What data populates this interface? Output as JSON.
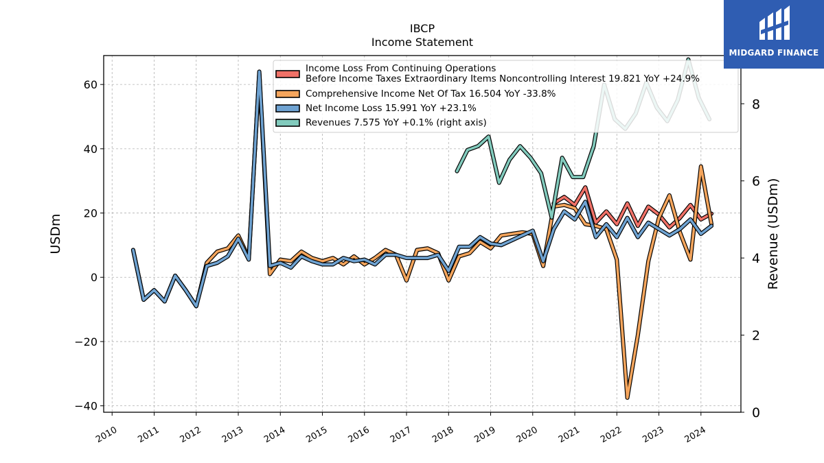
{
  "header": {
    "ticker": "IBCP",
    "subtitle": "Income Statement"
  },
  "logo": {
    "text": "MIDGARD FINANCE",
    "background": "#2f5db2"
  },
  "chart_data": {
    "type": "line",
    "title": "IBCP",
    "subtitle": "Income Statement",
    "ylabel": "USDm",
    "ylabel_right": "Revenue (USDm)",
    "ylim": [
      -42,
      69
    ],
    "ylim_right": [
      0,
      9.25
    ],
    "yticks": [
      -40,
      -20,
      0,
      20,
      40,
      60
    ],
    "yticks_right": [
      0,
      2,
      4,
      6,
      8
    ],
    "xlim": [
      2009.8,
      2024.95
    ],
    "xticks": [
      2010,
      2011,
      2012,
      2013,
      2014,
      2015,
      2016,
      2017,
      2018,
      2019,
      2020,
      2021,
      2022,
      2023,
      2024
    ],
    "grid": true,
    "legend_position": "top-right",
    "series": [
      {
        "name": "Income Loss From Continuing Operations Before Income Taxes Extraordinary Items Noncontrolling Interest  19.821 YoY +24.9%",
        "legend_lines": [
          "Income Loss From Continuing Operations",
          "Before Income Taxes Extraordinary Items Noncontrolling Interest  19.821 YoY +24.9%"
        ],
        "color": "#f07167",
        "axis": "left",
        "points": [
          [
            2020.5,
            23.0
          ],
          [
            2020.75,
            25.0
          ],
          [
            2021.0,
            22.5
          ],
          [
            2021.25,
            28.0
          ],
          [
            2021.5,
            17.0
          ],
          [
            2021.75,
            20.5
          ],
          [
            2022.0,
            16.5
          ],
          [
            2022.25,
            23.0
          ],
          [
            2022.5,
            16.0
          ],
          [
            2022.75,
            22.0
          ],
          [
            2023.0,
            19.5
          ],
          [
            2023.25,
            15.5
          ],
          [
            2023.5,
            18.5
          ],
          [
            2023.75,
            22.5
          ],
          [
            2024.0,
            18.0
          ],
          [
            2024.25,
            19.8
          ]
        ]
      },
      {
        "name": "Comprehensive Income Net Of Tax  16.504 YoY -33.8%",
        "color": "#f5a55c",
        "axis": "left",
        "points": [
          [
            2010.5,
            8.5
          ],
          [
            2010.75,
            -7.0
          ],
          [
            2011.0,
            -4.0
          ],
          [
            2011.25,
            -7.5
          ],
          [
            2011.5,
            0.5
          ],
          [
            2011.75,
            -4.0
          ],
          [
            2012.0,
            -9.0
          ],
          [
            2012.25,
            4.5
          ],
          [
            2012.5,
            8.0
          ],
          [
            2012.75,
            9.0
          ],
          [
            2013.0,
            13.0
          ],
          [
            2013.25,
            6.0
          ],
          [
            2013.5,
            63.5
          ],
          [
            2013.75,
            1.0
          ],
          [
            2014.0,
            5.5
          ],
          [
            2014.25,
            5.0
          ],
          [
            2014.5,
            8.0
          ],
          [
            2014.75,
            6.0
          ],
          [
            2015.0,
            5.0
          ],
          [
            2015.25,
            6.0
          ],
          [
            2015.5,
            4.0
          ],
          [
            2015.75,
            6.5
          ],
          [
            2016.0,
            4.0
          ],
          [
            2016.25,
            6.0
          ],
          [
            2016.5,
            8.5
          ],
          [
            2016.75,
            7.0
          ],
          [
            2017.0,
            -1.0
          ],
          [
            2017.25,
            8.5
          ],
          [
            2017.5,
            9.0
          ],
          [
            2017.75,
            7.5
          ],
          [
            2018.0,
            -1.0
          ],
          [
            2018.25,
            6.5
          ],
          [
            2018.5,
            7.5
          ],
          [
            2018.75,
            11.0
          ],
          [
            2019.0,
            9.0
          ],
          [
            2019.25,
            13.0
          ],
          [
            2019.5,
            13.5
          ],
          [
            2019.75,
            14.0
          ],
          [
            2020.0,
            13.5
          ],
          [
            2020.25,
            3.5
          ],
          [
            2020.5,
            22.0
          ],
          [
            2020.75,
            22.5
          ],
          [
            2021.0,
            21.5
          ],
          [
            2021.25,
            16.5
          ],
          [
            2021.5,
            16.0
          ],
          [
            2021.75,
            15.0
          ],
          [
            2022.0,
            5.5
          ],
          [
            2022.25,
            -37.5
          ],
          [
            2022.5,
            -18.0
          ],
          [
            2022.75,
            5.0
          ],
          [
            2023.0,
            18.5
          ],
          [
            2023.25,
            25.5
          ],
          [
            2023.5,
            14.0
          ],
          [
            2023.75,
            5.5
          ],
          [
            2024.0,
            34.5
          ],
          [
            2024.25,
            16.5
          ]
        ]
      },
      {
        "name": "Net Income Loss  15.991 YoY +23.1%",
        "color": "#6fa3d2",
        "axis": "left",
        "points": [
          [
            2010.5,
            8.5
          ],
          [
            2010.75,
            -7.0
          ],
          [
            2011.0,
            -4.0
          ],
          [
            2011.25,
            -7.5
          ],
          [
            2011.5,
            0.5
          ],
          [
            2011.75,
            -4.0
          ],
          [
            2012.0,
            -9.0
          ],
          [
            2012.25,
            3.5
          ],
          [
            2012.5,
            4.5
          ],
          [
            2012.75,
            6.5
          ],
          [
            2013.0,
            12.0
          ],
          [
            2013.25,
            5.5
          ],
          [
            2013.5,
            64.0
          ],
          [
            2013.75,
            3.5
          ],
          [
            2014.0,
            4.5
          ],
          [
            2014.25,
            3.0
          ],
          [
            2014.5,
            6.5
          ],
          [
            2014.75,
            5.0
          ],
          [
            2015.0,
            4.0
          ],
          [
            2015.25,
            4.0
          ],
          [
            2015.5,
            6.0
          ],
          [
            2015.75,
            5.0
          ],
          [
            2016.0,
            5.5
          ],
          [
            2016.25,
            4.0
          ],
          [
            2016.5,
            7.0
          ],
          [
            2016.75,
            7.0
          ],
          [
            2017.0,
            6.0
          ],
          [
            2017.25,
            6.0
          ],
          [
            2017.5,
            6.0
          ],
          [
            2017.75,
            7.0
          ],
          [
            2018.0,
            2.0
          ],
          [
            2018.25,
            9.5
          ],
          [
            2018.5,
            9.5
          ],
          [
            2018.75,
            12.5
          ],
          [
            2019.0,
            10.5
          ],
          [
            2019.25,
            10.0
          ],
          [
            2019.5,
            11.5
          ],
          [
            2019.75,
            13.0
          ],
          [
            2020.0,
            14.5
          ],
          [
            2020.25,
            5.0
          ],
          [
            2020.5,
            15.0
          ],
          [
            2020.75,
            20.5
          ],
          [
            2021.0,
            18.0
          ],
          [
            2021.25,
            23.5
          ],
          [
            2021.5,
            12.5
          ],
          [
            2021.75,
            16.5
          ],
          [
            2022.0,
            12.5
          ],
          [
            2022.25,
            18.5
          ],
          [
            2022.5,
            12.5
          ],
          [
            2022.75,
            17.0
          ],
          [
            2023.0,
            15.0
          ],
          [
            2023.25,
            13.0
          ],
          [
            2023.5,
            15.0
          ],
          [
            2023.75,
            18.0
          ],
          [
            2024.0,
            13.5
          ],
          [
            2024.25,
            16.0
          ]
        ]
      },
      {
        "name": "Revenues  7.575 YoY +0.1% (right axis)",
        "color": "#82cbbd",
        "axis": "right",
        "points": [
          [
            2018.2,
            6.25
          ],
          [
            2018.45,
            6.8
          ],
          [
            2018.7,
            6.9
          ],
          [
            2018.95,
            7.15
          ],
          [
            2019.2,
            5.95
          ],
          [
            2019.45,
            6.55
          ],
          [
            2019.7,
            6.9
          ],
          [
            2019.95,
            6.6
          ],
          [
            2020.2,
            6.2
          ],
          [
            2020.45,
            5.05
          ],
          [
            2020.7,
            6.6
          ],
          [
            2020.95,
            6.1
          ],
          [
            2021.2,
            6.1
          ],
          [
            2021.45,
            6.9
          ],
          [
            2021.7,
            8.5
          ],
          [
            2021.95,
            7.6
          ],
          [
            2022.2,
            7.35
          ],
          [
            2022.45,
            7.75
          ],
          [
            2022.7,
            8.55
          ],
          [
            2022.95,
            7.9
          ],
          [
            2023.2,
            7.55
          ],
          [
            2023.45,
            8.1
          ],
          [
            2023.7,
            9.15
          ],
          [
            2023.95,
            8.15
          ],
          [
            2024.2,
            7.6
          ]
        ]
      }
    ]
  }
}
